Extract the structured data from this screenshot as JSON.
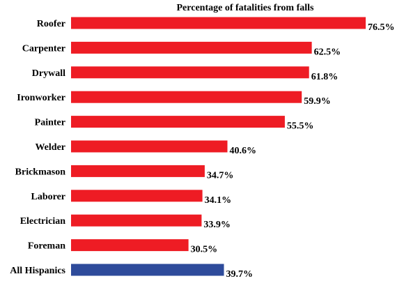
{
  "chart_data": {
    "type": "bar",
    "orientation": "horizontal",
    "title": "Percentage of fatalities from falls",
    "categories": [
      "Roofer",
      "Carpenter",
      "Drywall",
      "Ironworker",
      "Painter",
      "Welder",
      "Brickmason",
      "Laborer",
      "Electrician",
      "Foreman",
      "All Hispanics"
    ],
    "values": [
      76.5,
      62.5,
      61.8,
      59.9,
      55.5,
      40.6,
      34.7,
      34.1,
      33.9,
      30.5,
      39.7
    ],
    "value_labels": [
      "76.5%",
      "62.5%",
      "61.8%",
      "59.9%",
      "55.5%",
      "40.6%",
      "34.7%",
      "34.1%",
      "33.9%",
      "30.5%",
      "39.7%"
    ],
    "bar_colors": [
      "#ee1c24",
      "#ee1c24",
      "#ee1c24",
      "#ee1c24",
      "#ee1c24",
      "#ee1c24",
      "#ee1c24",
      "#ee1c24",
      "#ee1c24",
      "#ee1c24",
      "#2e4b9b"
    ],
    "xlim": [
      0,
      80
    ],
    "grid": false,
    "legend": "none"
  }
}
